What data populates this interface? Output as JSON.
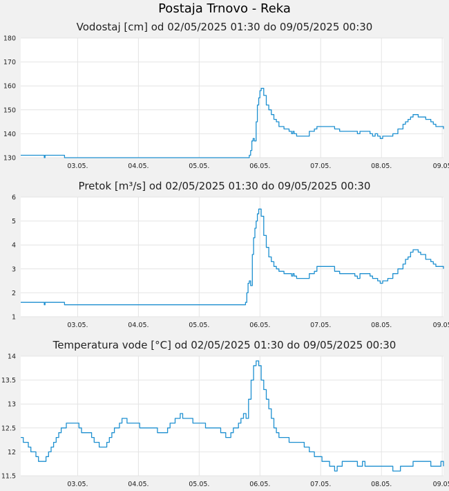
{
  "title": "Postaja Trnovo - Reka",
  "colors": {
    "line": "#1c8fd0",
    "grid": "#e4e4e4",
    "plot_bg": "#ffffff",
    "page_bg": "#f1f1f1"
  },
  "chart_data": [
    {
      "type": "line",
      "title": "Vodostaj [cm] od 02/05/2025 01:30 do 09/05/2025 00:30",
      "xlabel": "",
      "ylabel": "",
      "xlim": [
        0,
        167
      ],
      "ylim": [
        130,
        180
      ],
      "yticks": [
        130,
        140,
        150,
        160,
        170,
        180
      ],
      "xticks": [
        {
          "x": 22.5,
          "label": "03.05."
        },
        {
          "x": 46.5,
          "label": "04.05."
        },
        {
          "x": 70.5,
          "label": "05.05."
        },
        {
          "x": 94.5,
          "label": "06.05."
        },
        {
          "x": 118.5,
          "label": "07.05."
        },
        {
          "x": 142.5,
          "label": "08.05."
        },
        {
          "x": 166.5,
          "label": "09.05"
        }
      ],
      "grid": true,
      "series": [
        {
          "x": [
            0,
            9,
            9.3,
            9.6,
            17,
            17.3,
            90,
            90.3,
            90.8,
            91.3,
            91.8,
            92.3,
            93,
            93.5,
            94,
            94.5,
            95,
            96,
            97,
            98,
            99,
            100,
            101,
            102,
            104,
            106,
            107,
            107.5,
            108,
            109,
            112,
            114,
            116,
            117,
            122,
            124,
            126,
            132,
            133,
            134,
            136,
            138,
            139,
            140,
            141,
            142,
            143,
            145,
            147,
            149,
            151,
            152,
            153,
            154,
            155,
            157,
            158,
            160,
            162,
            163,
            164,
            167
          ],
          "y": [
            131,
            131,
            130,
            131,
            131,
            130,
            130,
            131,
            133,
            137,
            138,
            137,
            145,
            152,
            155,
            158,
            159,
            156,
            152,
            150,
            148,
            146,
            145,
            143,
            142,
            141,
            140,
            141,
            140,
            139,
            139,
            141,
            142,
            143,
            143,
            142,
            141,
            141,
            140,
            141,
            141,
            140,
            139,
            140,
            139,
            138,
            139,
            139,
            140,
            142,
            144,
            145,
            146,
            147,
            148,
            147,
            147,
            146,
            145,
            144,
            143,
            142
          ]
        }
      ]
    },
    {
      "type": "line",
      "title": "Pretok [m³/s] od 02/05/2025 01:30 do 09/05/2025 00:30",
      "xlabel": "",
      "ylabel": "",
      "xlim": [
        0,
        167
      ],
      "ylim": [
        1,
        6
      ],
      "yticks": [
        1,
        2,
        3,
        4,
        5,
        6
      ],
      "xticks": [
        {
          "x": 22.5,
          "label": "03.05."
        },
        {
          "x": 46.5,
          "label": "04.05."
        },
        {
          "x": 70.5,
          "label": "05.05."
        },
        {
          "x": 94.5,
          "label": "06.05."
        },
        {
          "x": 118.5,
          "label": "07.05."
        },
        {
          "x": 142.5,
          "label": "08.05."
        },
        {
          "x": 166.5,
          "label": "09.05"
        }
      ],
      "grid": true,
      "series": [
        {
          "x": [
            0,
            9,
            9.3,
            9.6,
            17,
            17.3,
            88.5,
            88.8,
            89.3,
            89.8,
            90.3,
            90.8,
            91.5,
            92,
            92.5,
            93,
            93.5,
            94,
            95,
            96,
            97,
            98,
            99,
            100,
            101,
            102,
            104,
            106,
            107,
            107.5,
            108,
            109,
            112,
            114,
            116,
            117,
            122,
            124,
            126,
            132,
            133,
            134,
            136,
            138,
            139,
            140,
            141,
            142,
            143,
            145,
            147,
            149,
            151,
            152,
            153,
            154,
            155,
            157,
            158,
            160,
            162,
            163,
            164,
            167
          ],
          "y": [
            1.6,
            1.6,
            1.5,
            1.6,
            1.6,
            1.5,
            1.5,
            1.6,
            2.0,
            2.4,
            2.5,
            2.3,
            3.6,
            4.3,
            4.7,
            5.0,
            5.3,
            5.5,
            5.2,
            4.4,
            3.9,
            3.5,
            3.3,
            3.1,
            3.0,
            2.9,
            2.8,
            2.8,
            2.7,
            2.8,
            2.7,
            2.6,
            2.6,
            2.8,
            2.9,
            3.1,
            3.1,
            2.9,
            2.8,
            2.7,
            2.6,
            2.8,
            2.8,
            2.7,
            2.6,
            2.6,
            2.5,
            2.4,
            2.5,
            2.6,
            2.8,
            3.0,
            3.2,
            3.4,
            3.5,
            3.7,
            3.8,
            3.7,
            3.6,
            3.4,
            3.3,
            3.2,
            3.1,
            3.0
          ]
        }
      ]
    },
    {
      "type": "line",
      "title": "Temperatura vode [°C] od 02/05/2025 01:30 do 09/05/2025 00:30",
      "xlabel": "",
      "ylabel": "",
      "xlim": [
        0,
        167
      ],
      "ylim": [
        11.5,
        14
      ],
      "yticks": [
        11.5,
        12,
        12.5,
        13,
        13.5,
        14
      ],
      "ytick_labels": [
        "11.5",
        "12",
        "12.5",
        "13",
        "13.5",
        "14"
      ],
      "xticks": [
        {
          "x": 22.5,
          "label": "03.05."
        },
        {
          "x": 46.5,
          "label": "04.05."
        },
        {
          "x": 70.5,
          "label": "05.05."
        },
        {
          "x": 94.5,
          "label": "06.05."
        },
        {
          "x": 118.5,
          "label": "07.05."
        },
        {
          "x": 142.5,
          "label": "08.05."
        },
        {
          "x": 166.5,
          "label": "09.05"
        }
      ],
      "grid": true,
      "series": [
        {
          "x": [
            0,
            1,
            2,
            3,
            4,
            5,
            6,
            7,
            8,
            9,
            10,
            11,
            12,
            13,
            14,
            15,
            16,
            17,
            18,
            22,
            23,
            24,
            27,
            28,
            29,
            30,
            31,
            33,
            34,
            35,
            36,
            37,
            38,
            39,
            40,
            41,
            42,
            43,
            46,
            47,
            48,
            53,
            54,
            56,
            57,
            58,
            59,
            60,
            61,
            62,
            63,
            64,
            67,
            68,
            72,
            73,
            78,
            79,
            80,
            81,
            82,
            83,
            84,
            85,
            86,
            87,
            88,
            89,
            90,
            91,
            92,
            93,
            94,
            95,
            96,
            97,
            98,
            99,
            100,
            101,
            102,
            103,
            104,
            105,
            106,
            111,
            112,
            113,
            114,
            115,
            116,
            119,
            120,
            121,
            122,
            123,
            124,
            125,
            126,
            127,
            128,
            130,
            131,
            133,
            134,
            135,
            136,
            137,
            143,
            144,
            145,
            147,
            149,
            150,
            152,
            153,
            155,
            157,
            158,
            159,
            162,
            163,
            165,
            166,
            167
          ],
          "y": [
            12.3,
            12.2,
            12.2,
            12.1,
            12.0,
            12.0,
            11.9,
            11.8,
            11.8,
            11.8,
            11.9,
            12.0,
            12.1,
            12.2,
            12.3,
            12.4,
            12.5,
            12.5,
            12.6,
            12.6,
            12.5,
            12.4,
            12.4,
            12.3,
            12.2,
            12.2,
            12.1,
            12.1,
            12.2,
            12.3,
            12.4,
            12.5,
            12.5,
            12.6,
            12.7,
            12.7,
            12.6,
            12.6,
            12.6,
            12.5,
            12.5,
            12.5,
            12.4,
            12.4,
            12.4,
            12.5,
            12.6,
            12.6,
            12.7,
            12.7,
            12.8,
            12.7,
            12.7,
            12.6,
            12.6,
            12.5,
            12.5,
            12.4,
            12.4,
            12.3,
            12.3,
            12.4,
            12.5,
            12.5,
            12.6,
            12.7,
            12.8,
            12.7,
            13.1,
            13.5,
            13.8,
            13.9,
            13.8,
            13.5,
            13.3,
            13.1,
            12.9,
            12.7,
            12.5,
            12.4,
            12.3,
            12.3,
            12.3,
            12.3,
            12.2,
            12.2,
            12.1,
            12.1,
            12.0,
            12.0,
            11.9,
            11.8,
            11.8,
            11.8,
            11.7,
            11.7,
            11.6,
            11.7,
            11.7,
            11.8,
            11.8,
            11.8,
            11.8,
            11.7,
            11.7,
            11.8,
            11.7,
            11.7,
            11.7,
            11.7,
            11.7,
            11.6,
            11.6,
            11.7,
            11.7,
            11.7,
            11.8,
            11.8,
            11.8,
            11.8,
            11.7,
            11.7,
            11.7,
            11.8,
            11.7
          ]
        }
      ]
    }
  ]
}
